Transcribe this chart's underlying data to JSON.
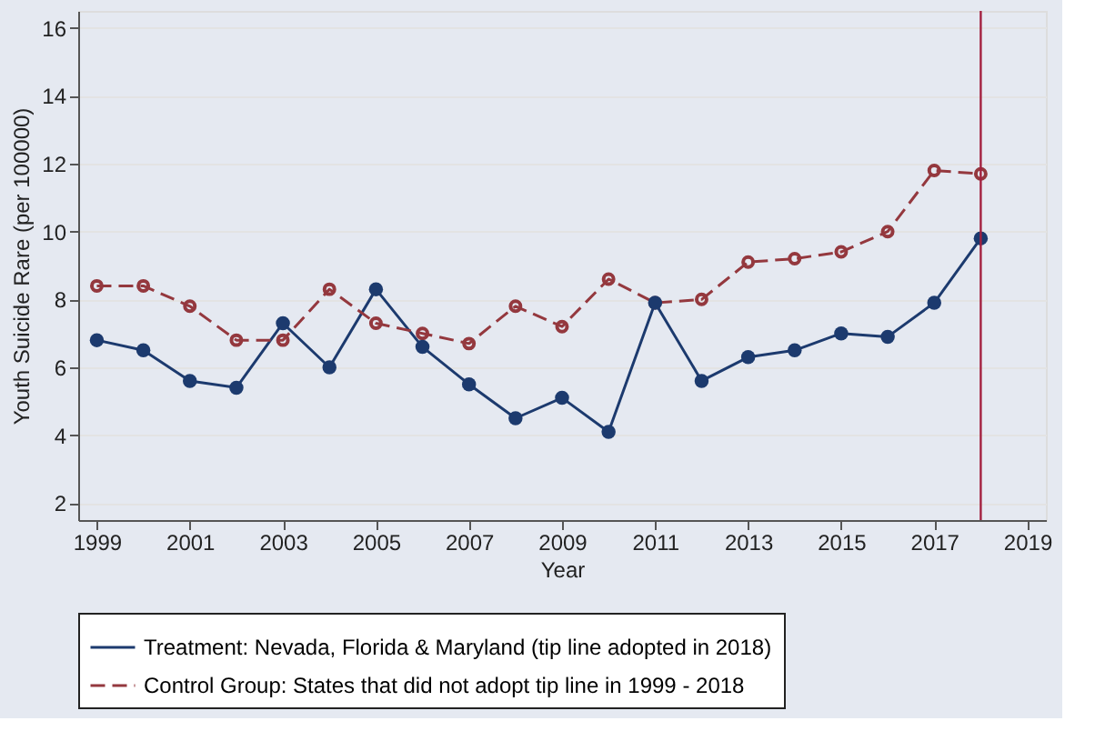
{
  "chart_data": {
    "type": "line",
    "xlabel": "Year",
    "ylabel": "Youth Suicide Rare (per 100000)",
    "x": [
      1999,
      2000,
      2001,
      2002,
      2003,
      2004,
      2005,
      2006,
      2007,
      2008,
      2009,
      2010,
      2011,
      2012,
      2013,
      2014,
      2015,
      2016,
      2017,
      2018
    ],
    "series": [
      {
        "name": "Treatment: Nevada, Florida & Maryland (tip line adopted in 2018)",
        "color": "#1c3a6e",
        "line_style": "solid",
        "values": [
          6.8,
          6.5,
          5.6,
          5.4,
          7.3,
          6.0,
          8.3,
          6.6,
          5.5,
          4.5,
          5.1,
          4.1,
          7.9,
          5.6,
          6.3,
          6.5,
          7.0,
          6.9,
          7.9,
          9.8
        ]
      },
      {
        "name": "Control Group: States that did not adopt tip line in 1999 - 2018",
        "color": "#94383e",
        "line_style": "dashed",
        "values": [
          8.4,
          8.4,
          7.8,
          6.8,
          6.8,
          8.3,
          7.3,
          7.0,
          6.7,
          7.8,
          7.2,
          8.6,
          7.9,
          8.0,
          9.1,
          9.2,
          9.4,
          10.0,
          11.8,
          11.7
        ]
      }
    ],
    "xlim": [
      1998.6,
      2019.4
    ],
    "xticks": [
      1999,
      2001,
      2003,
      2005,
      2007,
      2009,
      2011,
      2013,
      2015,
      2017,
      2019
    ],
    "ylim": [
      1.5,
      16.5
    ],
    "yticks": [
      2,
      4,
      6,
      8,
      10,
      12,
      14,
      16
    ],
    "ref_lines": [
      {
        "axis": "x",
        "value": 2018,
        "color": "#a3203f"
      }
    ],
    "grid": "y",
    "legend": "bottom",
    "marker": "circle"
  }
}
